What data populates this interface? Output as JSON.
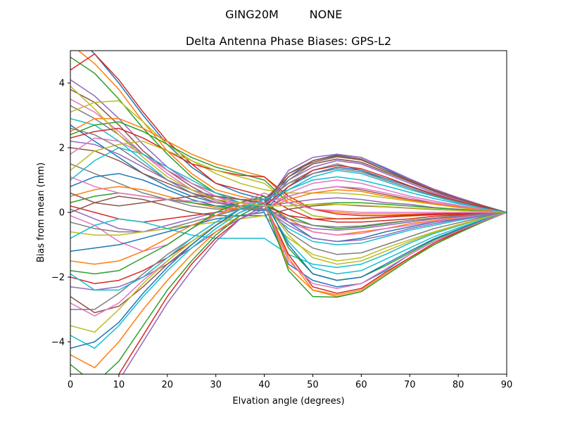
{
  "chart_data": {
    "type": "line",
    "suptitle_left": "GING20M",
    "suptitle_right": "NONE",
    "title": "Delta Antenna Phase Biases: GPS-L2",
    "xlabel": "Elvation angle (degrees)",
    "ylabel": "Bias from mean (mm)",
    "xlim": [
      0,
      90
    ],
    "ylim": [
      -5,
      5
    ],
    "xticks": [
      0,
      10,
      20,
      30,
      40,
      50,
      60,
      70,
      80,
      90
    ],
    "yticks": [
      -4,
      -2,
      0,
      2,
      4
    ],
    "x": [
      0,
      5,
      10,
      15,
      20,
      25,
      30,
      35,
      40,
      45,
      50,
      55,
      60,
      65,
      70,
      75,
      80,
      85,
      90
    ],
    "grid": false,
    "colors": [
      "#1f77b4",
      "#ff7f0e",
      "#2ca02c",
      "#d62728",
      "#9467bd",
      "#8c564b",
      "#e377c2",
      "#7f7f7f",
      "#bcbd22",
      "#17becf"
    ],
    "series": [
      {
        "values": [
          5.6,
          4.9,
          4.0,
          3.0,
          2.1,
          1.4,
          0.9,
          0.6,
          0.4,
          -0.3,
          -0.8,
          -0.9,
          -0.8,
          -0.6,
          -0.45,
          -0.3,
          -0.2,
          -0.1,
          0
        ]
      },
      {
        "values": [
          5.2,
          4.6,
          3.8,
          2.8,
          1.9,
          1.2,
          0.7,
          0.5,
          0.3,
          -0.2,
          -0.6,
          -0.7,
          -0.6,
          -0.5,
          -0.35,
          -0.25,
          -0.15,
          -0.07,
          0
        ]
      },
      {
        "values": [
          4.8,
          4.3,
          3.5,
          2.6,
          1.8,
          1.1,
          0.6,
          0.4,
          0.25,
          -0.1,
          -0.4,
          -0.5,
          -0.45,
          -0.35,
          -0.25,
          -0.18,
          -0.1,
          -0.05,
          0
        ]
      },
      {
        "values": [
          4.4,
          4.9,
          4.1,
          3.1,
          2.2,
          1.5,
          0.9,
          0.7,
          0.5,
          0.1,
          -0.2,
          -0.3,
          -0.3,
          -0.25,
          -0.2,
          -0.12,
          -0.08,
          -0.03,
          0
        ]
      },
      {
        "values": [
          4.1,
          3.6,
          2.9,
          2.1,
          1.4,
          0.9,
          0.5,
          0.3,
          0.2,
          0.3,
          0.4,
          0.45,
          0.4,
          0.3,
          0.25,
          0.15,
          0.1,
          0.05,
          0
        ]
      },
      {
        "values": [
          3.8,
          3.4,
          2.7,
          1.9,
          1.3,
          0.8,
          0.4,
          0.2,
          0.1,
          0.5,
          0.7,
          0.8,
          0.7,
          0.55,
          0.4,
          0.3,
          0.2,
          0.1,
          0
        ]
      },
      {
        "values": [
          3.5,
          3.1,
          2.5,
          1.8,
          1.2,
          0.7,
          0.35,
          0.15,
          0.05,
          0.6,
          0.9,
          1.0,
          0.9,
          0.7,
          0.5,
          0.35,
          0.22,
          0.1,
          0
        ]
      },
      {
        "values": [
          3.3,
          2.9,
          2.4,
          1.8,
          1.3,
          0.9,
          0.6,
          0.4,
          0.3,
          0.9,
          1.3,
          1.5,
          1.3,
          1.0,
          0.75,
          0.5,
          0.3,
          0.15,
          0
        ]
      },
      {
        "values": [
          3.1,
          3.4,
          3.45,
          2.8,
          2.1,
          1.6,
          1.2,
          0.9,
          0.7,
          0.6,
          0.6,
          0.6,
          0.55,
          0.45,
          0.35,
          0.25,
          0.15,
          0.07,
          0
        ]
      },
      {
        "values": [
          2.9,
          2.7,
          2.2,
          1.6,
          1.0,
          0.6,
          0.3,
          0.2,
          0.2,
          0.7,
          1.1,
          1.3,
          1.2,
          0.95,
          0.7,
          0.5,
          0.3,
          0.15,
          0
        ]
      },
      {
        "values": [
          2.7,
          2.2,
          1.7,
          1.2,
          0.8,
          0.5,
          0.3,
          0.2,
          0.2,
          1.1,
          1.6,
          1.78,
          1.7,
          1.35,
          1.0,
          0.7,
          0.45,
          0.2,
          0
        ]
      },
      {
        "values": [
          2.5,
          2.9,
          2.9,
          2.6,
          2.2,
          1.8,
          1.5,
          1.3,
          1.1,
          0.4,
          0.1,
          0.0,
          -0.05,
          -0.05,
          -0.05,
          -0.03,
          -0.02,
          -0.01,
          0
        ]
      },
      {
        "values": [
          2.4,
          2.7,
          2.8,
          2.5,
          2.1,
          1.7,
          1.4,
          1.2,
          1.0,
          0.3,
          -0.1,
          -0.2,
          -0.2,
          -0.15,
          -0.1,
          -0.07,
          -0.04,
          -0.02,
          0
        ]
      },
      {
        "values": [
          2.3,
          2.5,
          2.6,
          2.3,
          1.9,
          1.5,
          1.3,
          1.15,
          1.1,
          0.5,
          0.1,
          -0.05,
          -0.1,
          -0.1,
          -0.08,
          -0.05,
          -0.03,
          -0.01,
          0
        ]
      },
      {
        "values": [
          2.2,
          2.1,
          1.8,
          1.4,
          1.0,
          0.7,
          0.5,
          0.4,
          0.4,
          1.0,
          1.4,
          1.6,
          1.5,
          1.2,
          0.9,
          0.6,
          0.4,
          0.2,
          0
        ]
      },
      {
        "values": [
          2.0,
          1.9,
          1.6,
          1.2,
          0.9,
          0.6,
          0.4,
          0.3,
          0.3,
          1.2,
          1.6,
          1.75,
          1.65,
          1.3,
          1.0,
          0.7,
          0.45,
          0.2,
          0
        ]
      },
      {
        "values": [
          1.8,
          2.3,
          2.2,
          1.8,
          1.3,
          0.9,
          0.5,
          0.2,
          0.1,
          -0.3,
          -0.6,
          -0.7,
          -0.65,
          -0.5,
          -0.4,
          -0.28,
          -0.18,
          -0.08,
          0
        ]
      },
      {
        "values": [
          1.5,
          1.2,
          0.9,
          0.6,
          0.4,
          0.2,
          0.1,
          0.1,
          0.1,
          1.0,
          1.5,
          1.65,
          1.55,
          1.25,
          0.95,
          0.65,
          0.42,
          0.2,
          0
        ]
      },
      {
        "values": [
          1.3,
          1.9,
          2.1,
          2.2,
          1.9,
          1.6,
          1.3,
          1.1,
          0.9,
          0.3,
          -0.1,
          -0.2,
          -0.2,
          -0.15,
          -0.12,
          -0.08,
          -0.05,
          -0.02,
          0
        ]
      },
      {
        "values": [
          1.0,
          1.6,
          2.0,
          1.8,
          1.4,
          1.0,
          0.6,
          0.3,
          0.1,
          -0.5,
          -0.9,
          -1.0,
          -0.95,
          -0.75,
          -0.55,
          -0.4,
          -0.25,
          -0.12,
          0
        ]
      },
      {
        "values": [
          0.8,
          1.1,
          1.2,
          1.0,
          0.7,
          0.4,
          0.2,
          0.1,
          0.05,
          0.8,
          1.2,
          1.4,
          1.3,
          1.05,
          0.8,
          0.55,
          0.35,
          0.17,
          0
        ]
      },
      {
        "values": [
          0.5,
          0.7,
          0.8,
          0.7,
          0.5,
          0.3,
          0.15,
          0.1,
          0.1,
          0.4,
          0.6,
          0.7,
          0.65,
          0.5,
          0.38,
          0.26,
          0.17,
          0.08,
          0
        ]
      },
      {
        "values": [
          0.3,
          0.5,
          0.6,
          0.5,
          0.4,
          0.3,
          0.2,
          0.2,
          0.2,
          0.2,
          0.25,
          0.3,
          0.3,
          0.25,
          0.2,
          0.14,
          0.09,
          0.04,
          0
        ]
      },
      {
        "values": [
          0.2,
          0.0,
          -0.2,
          -0.3,
          -0.2,
          -0.1,
          0.0,
          0.1,
          0.2,
          -0.1,
          -0.2,
          -0.2,
          -0.18,
          -0.14,
          -0.1,
          -0.07,
          -0.05,
          -0.02,
          0
        ]
      },
      {
        "values": [
          0.1,
          -0.2,
          -0.5,
          -0.6,
          -0.4,
          -0.2,
          0.0,
          0.1,
          0.2,
          -0.3,
          -0.5,
          -0.55,
          -0.5,
          -0.4,
          -0.3,
          -0.2,
          -0.13,
          -0.06,
          0
        ]
      },
      {
        "values": [
          0.0,
          0.3,
          0.5,
          0.4,
          0.2,
          0.0,
          -0.1,
          -0.1,
          -0.1,
          0.1,
          0.2,
          0.25,
          0.2,
          0.17,
          0.13,
          0.09,
          0.06,
          0.03,
          0
        ]
      },
      {
        "values": [
          -0.1,
          -0.4,
          -0.9,
          -1.2,
          -1.0,
          -0.5,
          -0.1,
          0.3,
          0.6,
          0.3,
          0.1,
          0.05,
          0.0,
          0.0,
          0.0,
          0.0,
          0.0,
          0.0,
          0
        ]
      },
      {
        "values": [
          -0.3,
          -0.5,
          -0.6,
          -0.6,
          -0.5,
          -0.3,
          -0.1,
          0.1,
          0.3,
          -0.6,
          -1.1,
          -1.3,
          -1.25,
          -1.0,
          -0.75,
          -0.5,
          -0.32,
          -0.15,
          0
        ]
      },
      {
        "values": [
          -0.6,
          -0.7,
          -0.7,
          -0.6,
          -0.5,
          -0.4,
          -0.3,
          -0.2,
          -0.1,
          -0.8,
          -1.3,
          -1.5,
          -1.4,
          -1.1,
          -0.85,
          -0.6,
          -0.38,
          -0.18,
          0
        ]
      },
      {
        "values": [
          -0.8,
          -0.4,
          -0.2,
          -0.3,
          -0.5,
          -0.7,
          -0.8,
          -0.8,
          -0.8,
          -1.3,
          -1.6,
          -1.7,
          -1.6,
          -1.3,
          -0.95,
          -0.65,
          -0.42,
          -0.2,
          0
        ]
      },
      {
        "values": [
          -1.2,
          -1.1,
          -1.0,
          -0.8,
          -0.6,
          -0.4,
          -0.2,
          -0.1,
          0.0,
          -1.6,
          -2.1,
          -2.3,
          -2.2,
          -1.8,
          -1.3,
          -0.9,
          -0.58,
          -0.28,
          0
        ]
      },
      {
        "values": [
          -1.5,
          -1.6,
          -1.5,
          -1.2,
          -0.8,
          -0.4,
          -0.1,
          0.2,
          0.4,
          -1.7,
          -2.4,
          -2.55,
          -2.4,
          -1.9,
          -1.4,
          -1.0,
          -0.62,
          -0.3,
          0
        ]
      },
      {
        "values": [
          -1.8,
          -1.9,
          -1.8,
          -1.4,
          -1.0,
          -0.5,
          0.0,
          0.3,
          0.5,
          -1.1,
          -1.9,
          -2.1,
          -2.0,
          -1.65,
          -1.25,
          -0.85,
          -0.55,
          -0.25,
          0
        ]
      },
      {
        "values": [
          -2.0,
          -2.2,
          -2.1,
          -1.8,
          -1.4,
          -0.9,
          -0.4,
          0.0,
          0.3,
          -1.3,
          -2.3,
          -2.5,
          -2.35,
          -1.85,
          -1.4,
          -0.95,
          -0.6,
          -0.28,
          0
        ]
      },
      {
        "values": [
          -2.3,
          -2.4,
          -2.3,
          -2.0,
          -1.6,
          -1.1,
          -0.6,
          -0.2,
          0.1,
          -0.4,
          -0.8,
          -0.9,
          -0.85,
          -0.7,
          -0.5,
          -0.35,
          -0.22,
          -0.1,
          0
        ]
      },
      {
        "values": [
          -2.6,
          -3.1,
          -2.9,
          -2.3,
          -1.6,
          -1.0,
          -0.4,
          0.1,
          0.4,
          1.1,
          1.5,
          1.65,
          1.55,
          1.25,
          0.95,
          0.65,
          0.42,
          0.2,
          0
        ]
      },
      {
        "values": [
          -2.8,
          -3.2,
          -2.8,
          -2.1,
          -1.5,
          -0.9,
          -0.4,
          0.0,
          0.3,
          0.5,
          0.7,
          0.8,
          0.75,
          0.6,
          0.45,
          0.3,
          0.2,
          0.1,
          0
        ]
      },
      {
        "values": [
          -3.0,
          -3.0,
          -2.5,
          -1.9,
          -1.3,
          -0.8,
          -0.3,
          0.1,
          0.4,
          0.9,
          1.2,
          1.35,
          1.25,
          1.0,
          0.75,
          0.52,
          0.33,
          0.16,
          0
        ]
      },
      {
        "values": [
          -3.5,
          -3.7,
          -3.0,
          -2.2,
          -1.5,
          -0.9,
          -0.4,
          0.0,
          0.3,
          -0.7,
          -1.4,
          -1.6,
          -1.5,
          -1.2,
          -0.9,
          -0.62,
          -0.4,
          -0.19,
          0
        ]
      },
      {
        "values": [
          -3.8,
          -4.2,
          -3.5,
          -2.6,
          -1.8,
          -1.1,
          -0.5,
          0.0,
          0.3,
          -0.9,
          -1.7,
          -1.9,
          -1.8,
          -1.45,
          -1.1,
          -0.75,
          -0.48,
          -0.23,
          0
        ]
      },
      {
        "values": [
          -4.2,
          -4.0,
          -3.4,
          -2.5,
          -1.7,
          -1.0,
          -0.4,
          0.1,
          0.4,
          -1.0,
          -1.9,
          -2.1,
          -2.0,
          -1.6,
          -1.2,
          -0.82,
          -0.52,
          -0.25,
          0
        ]
      },
      {
        "values": [
          -4.4,
          -4.8,
          -4.0,
          -3.0,
          -2.1,
          -1.3,
          -0.6,
          -0.1,
          0.3,
          -1.4,
          -2.4,
          -2.6,
          -2.45,
          -1.95,
          -1.45,
          -1.0,
          -0.64,
          -0.3,
          0
        ]
      },
      {
        "values": [
          -4.7,
          -5.3,
          -4.6,
          -3.5,
          -2.4,
          -1.5,
          -0.7,
          -0.1,
          0.3,
          -1.8,
          -2.6,
          -2.62,
          -2.45,
          -1.95,
          -1.45,
          -1.0,
          -0.64,
          -0.3,
          0
        ]
      },
      {
        "values": [
          -5.0,
          -5.6,
          -5.0,
          -3.8,
          -2.6,
          -1.6,
          -0.8,
          -0.2,
          0.2,
          0.8,
          1.3,
          1.45,
          1.35,
          1.1,
          0.82,
          0.56,
          0.36,
          0.17,
          0
        ]
      },
      {
        "values": [
          -5.4,
          -5.8,
          -5.2,
          -4.0,
          -2.8,
          -1.8,
          -0.9,
          -0.2,
          0.2,
          1.3,
          1.7,
          1.8,
          1.7,
          1.38,
          1.04,
          0.72,
          0.46,
          0.22,
          0
        ]
      },
      {
        "values": [
          0.6,
          0.3,
          0.2,
          0.3,
          0.4,
          0.5,
          0.5,
          0.4,
          0.3,
          1.2,
          1.55,
          1.72,
          1.62,
          1.3,
          0.98,
          0.68,
          0.43,
          0.21,
          0
        ]
      },
      {
        "values": [
          1.1,
          0.8,
          0.6,
          0.5,
          0.4,
          0.35,
          0.3,
          0.3,
          0.3,
          -1.5,
          -2.2,
          -2.35,
          -2.2,
          -1.75,
          -1.3,
          -0.9,
          -0.57,
          -0.27,
          0
        ]
      },
      {
        "values": [
          2.6,
          2.4,
          2.0,
          1.5,
          1.0,
          0.6,
          0.3,
          0.15,
          0.1,
          -0.2,
          -0.4,
          -0.45,
          -0.42,
          -0.33,
          -0.25,
          -0.17,
          -0.11,
          -0.05,
          0
        ]
      },
      {
        "values": [
          3.9,
          3.2,
          2.4,
          1.7,
          1.1,
          0.7,
          0.4,
          0.3,
          0.2,
          0.2,
          0.25,
          0.25,
          0.22,
          0.18,
          0.14,
          0.1,
          0.06,
          0.03,
          0
        ]
      },
      {
        "values": [
          -1.9,
          -2.4,
          -2.4,
          -2.0,
          -1.4,
          -0.8,
          -0.3,
          0.1,
          0.4,
          0.7,
          1.0,
          1.1,
          1.0,
          0.82,
          0.62,
          0.43,
          0.27,
          0.13,
          0
        ]
      }
    ]
  }
}
